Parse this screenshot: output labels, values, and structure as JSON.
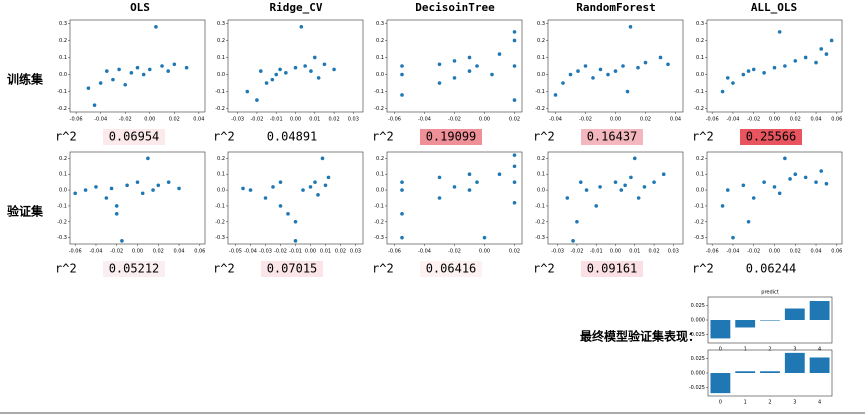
{
  "column_headers": [
    "OLS",
    "Ridge_CV",
    "DecisoinTree",
    "RandomForest",
    "ALL_OLS"
  ],
  "row_labels": [
    "训练集",
    "验证集"
  ],
  "final_label": "最终模型验证集表现：",
  "chart_data": [
    {
      "type": "scatter",
      "color": "#1f77b4",
      "r2_label": "r^2",
      "r2": "0.06954",
      "r2_color": "#fbe9ec",
      "xlim": [
        -0.065,
        0.045
      ],
      "xticks": [
        -0.06,
        -0.04,
        -0.02,
        {
          "value": 0,
          "label": "0.00"
        },
        0.02,
        0.04
      ],
      "ylim": [
        -0.22,
        0.32
      ],
      "yticks": [
        -0.2,
        -0.1,
        {
          "value": 0,
          "label": "0.0"
        },
        0.1,
        0.2,
        0.3
      ],
      "x": [
        -0.05,
        -0.04,
        -0.035,
        -0.03,
        -0.025,
        -0.02,
        -0.015,
        -0.01,
        -0.005,
        0,
        0.005,
        0.01,
        0.015,
        0.02,
        0.03,
        -0.045
      ],
      "values": [
        -0.08,
        -0.05,
        0.02,
        -0.03,
        0.03,
        -0.06,
        0.01,
        0.04,
        0.0,
        0.03,
        0.28,
        0.05,
        0.02,
        0.06,
        0.04,
        -0.18
      ]
    },
    {
      "type": "scatter",
      "color": "#1f77b4",
      "r2_label": "r^2",
      "r2": "0.04891",
      "r2_color": "#ffffff",
      "xlim": [
        -0.035,
        0.035
      ],
      "xticks": [
        -0.03,
        -0.02,
        -0.01,
        {
          "value": 0,
          "label": "0.00"
        },
        0.01,
        0.02,
        0.03
      ],
      "ylim": [
        -0.22,
        0.32
      ],
      "yticks": [
        -0.2,
        -0.1,
        {
          "value": 0,
          "label": "0.0"
        },
        0.1,
        0.2,
        0.3
      ],
      "x": [
        -0.025,
        -0.02,
        -0.018,
        -0.015,
        -0.01,
        -0.008,
        -0.005,
        0,
        0.003,
        0.005,
        0.008,
        0.01,
        0.012,
        0.015,
        0.02,
        -0.012
      ],
      "values": [
        -0.1,
        -0.15,
        0.02,
        -0.05,
        0.0,
        0.03,
        0.01,
        0.04,
        0.28,
        0.05,
        0.02,
        0.1,
        -0.02,
        0.06,
        0.03,
        -0.03
      ]
    },
    {
      "type": "scatter",
      "color": "#1f77b4",
      "r2_label": "r^2",
      "r2": "0.19099",
      "r2_color": "#ef8f97",
      "xlim": [
        -0.065,
        0.025
      ],
      "xticks": [
        -0.06,
        -0.04,
        -0.02,
        {
          "value": 0,
          "label": "0.00"
        },
        0.02
      ],
      "ylim": [
        -0.22,
        0.32
      ],
      "yticks": [
        -0.2,
        -0.1,
        {
          "value": 0,
          "label": "0.0"
        },
        0.1,
        0.2,
        0.3
      ],
      "x": [
        -0.055,
        -0.055,
        -0.055,
        -0.03,
        -0.03,
        -0.02,
        -0.02,
        -0.01,
        -0.01,
        -0.005,
        0.005,
        0.01,
        0.02,
        0.02,
        0.02,
        0.02
      ],
      "values": [
        -0.12,
        0.0,
        0.05,
        -0.05,
        0.06,
        -0.02,
        0.08,
        0.02,
        0.1,
        0.05,
        0.0,
        0.12,
        -0.15,
        0.05,
        0.2,
        0.25
      ]
    },
    {
      "type": "scatter",
      "color": "#1f77b4",
      "r2_label": "r^2",
      "r2": "0.16437",
      "r2_color": "#f4b7bd",
      "xlim": [
        -0.045,
        0.045
      ],
      "xticks": [
        -0.04,
        -0.02,
        {
          "value": 0,
          "label": "0.00"
        },
        0.02,
        0.04
      ],
      "ylim": [
        -0.22,
        0.32
      ],
      "yticks": [
        -0.2,
        -0.1,
        {
          "value": 0,
          "label": "0.0"
        },
        0.1,
        0.2,
        0.3
      ],
      "x": [
        -0.04,
        -0.035,
        -0.03,
        -0.025,
        -0.02,
        -0.015,
        -0.01,
        -0.005,
        0,
        0.005,
        0.01,
        0.015,
        0.02,
        0.03,
        0.035,
        0.008
      ],
      "values": [
        -0.12,
        -0.05,
        0.0,
        0.02,
        0.05,
        -0.02,
        0.03,
        0.0,
        0.02,
        0.05,
        0.28,
        0.04,
        0.07,
        0.1,
        0.06,
        -0.1
      ]
    },
    {
      "type": "scatter",
      "color": "#1f77b4",
      "r2_label": "r^2",
      "r2": "0.25566",
      "r2_color": "#e8555f",
      "xlim": [
        -0.065,
        0.065
      ],
      "xticks": [
        -0.06,
        -0.04,
        -0.02,
        {
          "value": 0,
          "label": "0.00"
        },
        0.02,
        0.04,
        0.06
      ],
      "ylim": [
        -0.22,
        0.32
      ],
      "yticks": [
        -0.2,
        -0.1,
        {
          "value": 0,
          "label": "0.0"
        },
        0.1,
        0.2,
        0.3
      ],
      "x": [
        -0.05,
        -0.045,
        -0.04,
        -0.03,
        -0.025,
        -0.02,
        -0.01,
        0,
        0.005,
        0.01,
        0.02,
        0.03,
        0.04,
        0.045,
        0.05,
        0.055
      ],
      "values": [
        -0.1,
        -0.02,
        -0.05,
        0.0,
        0.02,
        0.03,
        0.01,
        0.04,
        0.25,
        0.05,
        0.08,
        0.1,
        0.07,
        0.15,
        0.12,
        0.2
      ]
    },
    {
      "type": "scatter",
      "color": "#1f77b4",
      "r2_label": "r^2",
      "r2": "0.05212",
      "r2_color": "#fbeef0",
      "xlim": [
        -0.065,
        0.065
      ],
      "xticks": [
        -0.06,
        -0.04,
        -0.02,
        {
          "value": 0,
          "label": "0.00"
        },
        0.02,
        0.04,
        0.06
      ],
      "ylim": [
        -0.34,
        0.24
      ],
      "yticks": [
        -0.3,
        -0.2,
        -0.1,
        {
          "value": 0,
          "label": "0.0"
        },
        0.1,
        0.2
      ],
      "x": [
        -0.06,
        -0.05,
        -0.04,
        -0.03,
        -0.025,
        -0.02,
        -0.015,
        -0.01,
        0,
        0.005,
        0.01,
        0.015,
        0.02,
        0.03,
        0.04,
        -0.02
      ],
      "values": [
        -0.02,
        0.0,
        0.02,
        -0.05,
        0.01,
        -0.1,
        -0.32,
        0.03,
        0.05,
        -0.02,
        0.2,
        0.0,
        0.03,
        0.05,
        0.01,
        -0.15
      ]
    },
    {
      "type": "scatter",
      "color": "#1f77b4",
      "r2_label": "r^2",
      "r2": "0.07015",
      "r2_color": "#fbe5e8",
      "xlim": [
        -0.055,
        0.035
      ],
      "xticks": [
        -0.05,
        -0.04,
        -0.03,
        -0.02,
        -0.01,
        {
          "value": 0,
          "label": "0.00"
        },
        0.01,
        0.02,
        0.03
      ],
      "ylim": [
        -0.34,
        0.24
      ],
      "yticks": [
        -0.3,
        -0.2,
        -0.1,
        {
          "value": 0,
          "label": "0.0"
        },
        0.1,
        0.2
      ],
      "x": [
        -0.045,
        -0.04,
        -0.03,
        -0.025,
        -0.02,
        -0.02,
        -0.015,
        -0.01,
        -0.005,
        0,
        0.003,
        0.005,
        0.008,
        0.01,
        0.012,
        -0.01
      ],
      "values": [
        0.01,
        0.0,
        -0.05,
        0.02,
        -0.1,
        0.05,
        -0.15,
        -0.32,
        0.0,
        0.02,
        0.05,
        -0.03,
        0.2,
        0.03,
        0.08,
        -0.2
      ]
    },
    {
      "type": "scatter",
      "color": "#1f77b4",
      "r2_label": "r^2",
      "r2": "0.06416",
      "r2_color": "#fdf1f2",
      "xlim": [
        -0.065,
        0.025
      ],
      "xticks": [
        -0.06,
        -0.04,
        -0.02,
        {
          "value": 0,
          "label": "0.00"
        },
        0.02
      ],
      "ylim": [
        -0.34,
        0.24
      ],
      "yticks": [
        -0.3,
        -0.2,
        -0.1,
        {
          "value": 0,
          "label": "0.0"
        },
        0.1,
        0.2
      ],
      "x": [
        -0.055,
        -0.055,
        -0.055,
        -0.055,
        -0.03,
        -0.03,
        -0.02,
        -0.01,
        -0.01,
        -0.005,
        0,
        0.01,
        0.02,
        0.02,
        0.02,
        0.02
      ],
      "values": [
        -0.3,
        -0.15,
        0.0,
        0.05,
        -0.05,
        0.08,
        0.02,
        0.0,
        0.1,
        0.05,
        -0.3,
        0.1,
        -0.08,
        0.05,
        0.15,
        0.22
      ]
    },
    {
      "type": "scatter",
      "color": "#1f77b4",
      "r2_label": "r^2",
      "r2": "0.09161",
      "r2_color": "#fae0e4",
      "xlim": [
        -0.035,
        0.035
      ],
      "xticks": [
        -0.03,
        -0.02,
        -0.01,
        {
          "value": 0,
          "label": "0.00"
        },
        0.01,
        0.02,
        0.03
      ],
      "ylim": [
        -0.34,
        0.24
      ],
      "yticks": [
        -0.3,
        -0.2,
        -0.1,
        {
          "value": 0,
          "label": "0.0"
        },
        0.1,
        0.2
      ],
      "x": [
        -0.025,
        -0.02,
        -0.018,
        -0.015,
        -0.01,
        -0.008,
        0,
        0.003,
        0.005,
        0.008,
        0.01,
        0.015,
        0.02,
        0.025,
        -0.022,
        0.012
      ],
      "values": [
        -0.05,
        -0.2,
        0.05,
        0.0,
        -0.1,
        0.02,
        0.05,
        0.0,
        0.03,
        0.08,
        0.2,
        0.02,
        0.05,
        0.1,
        -0.32,
        -0.05
      ]
    },
    {
      "type": "scatter",
      "color": "#1f77b4",
      "r2_label": "r^2",
      "r2": "0.06244",
      "r2_color": "#ffffff",
      "xlim": [
        -0.065,
        0.065
      ],
      "xticks": [
        -0.06,
        -0.04,
        -0.02,
        {
          "value": 0,
          "label": "0.00"
        },
        0.02,
        0.04,
        0.06
      ],
      "ylim": [
        -0.34,
        0.24
      ],
      "yticks": [
        -0.3,
        -0.2,
        -0.1,
        {
          "value": 0,
          "label": "0.0"
        },
        0.1,
        0.2
      ],
      "x": [
        -0.05,
        -0.045,
        -0.04,
        -0.03,
        -0.02,
        -0.01,
        0,
        0.005,
        0.01,
        0.015,
        0.02,
        0.03,
        0.04,
        0.045,
        0.05,
        -0.025
      ],
      "values": [
        -0.1,
        0.0,
        -0.3,
        0.03,
        -0.05,
        0.05,
        0.02,
        -0.02,
        0.2,
        0.07,
        0.1,
        0.08,
        0.05,
        0.12,
        0.04,
        -0.2
      ]
    },
    {
      "type": "bar",
      "title": "predict",
      "color": "#1f77b4",
      "categories": [
        "0",
        "1",
        "2",
        "3",
        "4"
      ],
      "values": [
        -0.032,
        -0.013,
        -0.001,
        0.02,
        0.033
      ],
      "ylim": [
        -0.04,
        0.04
      ],
      "yticks": [
        -0.025,
        {
          "value": 0,
          "label": "0.000"
        },
        0.025
      ]
    },
    {
      "type": "bar",
      "color": "#1f77b4",
      "categories": [
        "0",
        "1",
        "2",
        "3",
        "4"
      ],
      "values": [
        -0.035,
        0.003,
        0.003,
        0.035,
        0.027
      ],
      "ylim": [
        -0.04,
        0.04
      ],
      "yticks": [
        -0.025,
        {
          "value": 0,
          "label": "0.000"
        },
        0.025
      ]
    }
  ]
}
